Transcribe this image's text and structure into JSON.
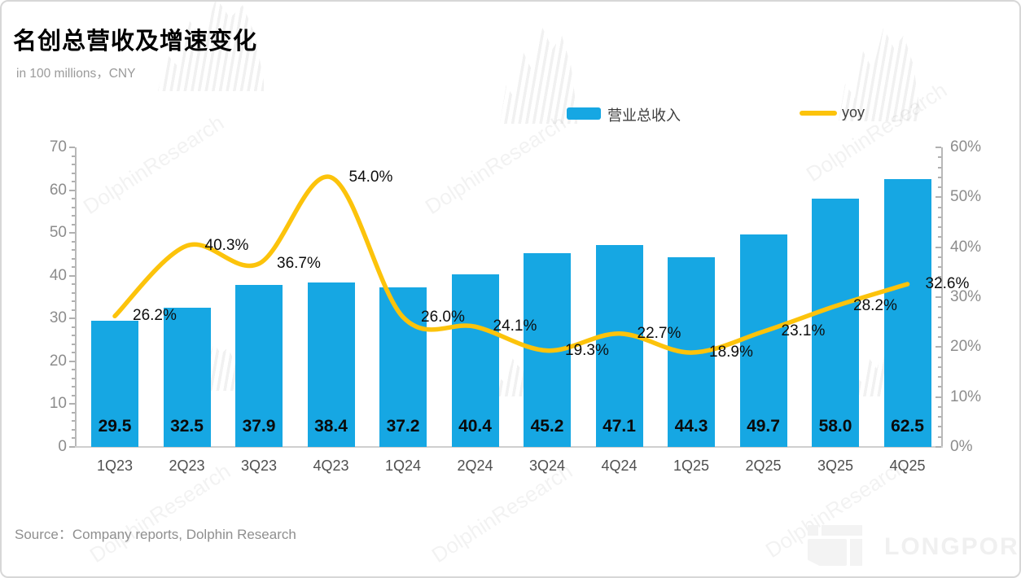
{
  "page": {
    "title": "名创总营收及增速变化",
    "subtitle": "in 100 millions，CNY",
    "source": "Source：Company reports, Dolphin Research",
    "watermark_text": "DolphinResearch",
    "brand": "LONGPORT"
  },
  "legend": {
    "bar": {
      "label": "营业总收入",
      "color": "#16a7e3"
    },
    "line": {
      "label": "yoy",
      "color": "#fcc30b"
    }
  },
  "chart_data": {
    "type": "bar",
    "subtype": "bar+line combo, dual axis",
    "title": "名创总营收及增速变化",
    "categories": [
      "1Q23",
      "2Q23",
      "3Q23",
      "4Q23",
      "1Q24",
      "2Q24",
      "3Q24",
      "4Q24",
      "1Q25",
      "2Q25",
      "3Q25",
      "4Q25"
    ],
    "series": [
      {
        "name": "营业总收入",
        "type": "bar",
        "axis": "left",
        "unit": "100 millions CNY",
        "color": "#16a7e3",
        "values": [
          29.5,
          32.5,
          37.9,
          38.4,
          37.2,
          40.4,
          45.2,
          47.1,
          44.3,
          49.7,
          58.0,
          62.5
        ],
        "labels": [
          "29.5",
          "32.5",
          "37.9",
          "38.4",
          "37.2",
          "40.4",
          "45.2",
          "47.1",
          "44.3",
          "49.7",
          "58.0",
          "62.5"
        ]
      },
      {
        "name": "yoy",
        "type": "line",
        "axis": "right",
        "unit": "%",
        "color": "#fcc30b",
        "values": [
          26.2,
          40.3,
          36.7,
          54.0,
          26.0,
          24.1,
          19.3,
          22.7,
          18.9,
          23.1,
          28.2,
          32.6
        ],
        "labels": [
          "26.2%",
          "40.3%",
          "36.7%",
          "54.0%",
          "26.0%",
          "24.1%",
          "19.3%",
          "22.7%",
          "18.9%",
          "23.1%",
          "28.2%",
          "32.6%"
        ]
      }
    ],
    "left_axis": {
      "min": 0,
      "max": 70,
      "step": 10,
      "tick_labels": [
        "0",
        "10",
        "20",
        "30",
        "40",
        "50",
        "60",
        "70"
      ]
    },
    "right_axis": {
      "min": 0,
      "max": 60,
      "step": 10,
      "tick_labels": [
        "0%",
        "10%",
        "20%",
        "30%",
        "40%",
        "50%",
        "60%"
      ]
    },
    "grid": false,
    "legend_position": "top"
  }
}
